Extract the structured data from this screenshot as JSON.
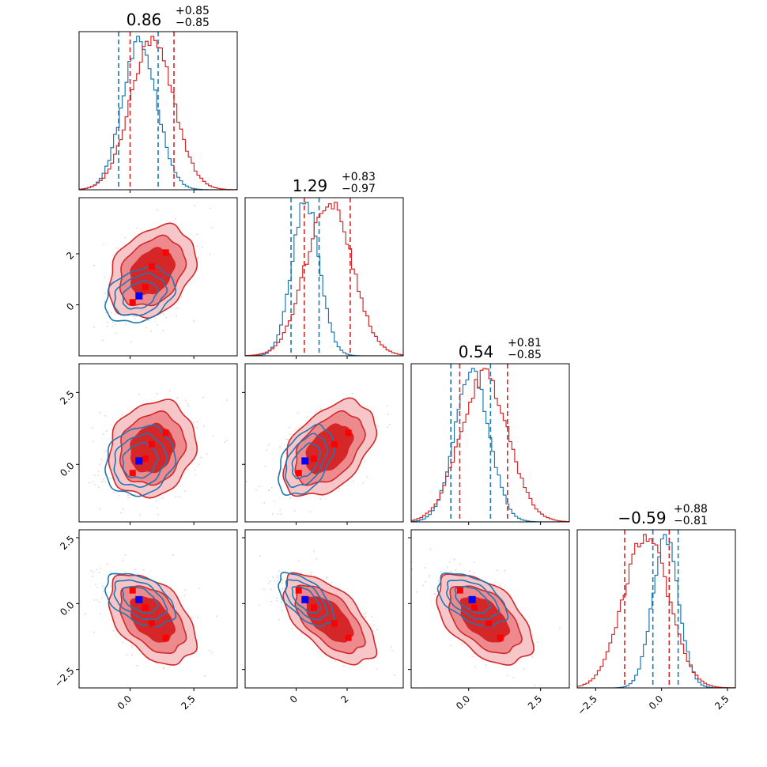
{
  "figure": {
    "background": "#ffffff"
  },
  "chart_data": {
    "type": "corner",
    "parameters": [
      {
        "title": "0.86",
        "upper": "+0.85",
        "lower": "−0.85",
        "range": [
          -2.0,
          4.2
        ]
      },
      {
        "title": "1.29",
        "upper": "+0.83",
        "lower": "−0.97",
        "range": [
          -2.0,
          4.2
        ]
      },
      {
        "title": "0.54",
        "upper": "+0.81",
        "lower": "−0.85",
        "range": [
          -2.0,
          3.5
        ]
      },
      {
        "title": "−0.59",
        "upper": "+0.88",
        "lower": "−0.81",
        "range": [
          -3.2,
          2.8
        ]
      }
    ],
    "series": [
      {
        "color": "#d62728",
        "means": [
          0.86,
          1.29,
          0.54,
          -0.59
        ],
        "sigmas": [
          0.85,
          0.9,
          0.83,
          0.85
        ],
        "quantiles": [
          [
            0.0,
            1.72
          ],
          [
            0.32,
            2.12
          ],
          [
            -0.31,
            1.35
          ],
          [
            -1.4,
            0.29
          ]
        ],
        "markers": [
          [
            0.1,
            0.1,
            -0.3,
            0.5
          ],
          [
            0.6,
            0.7,
            0.2,
            -0.15
          ],
          [
            0.85,
            1.5,
            0.7,
            -0.75
          ],
          [
            1.4,
            2.05,
            1.1,
            -1.3
          ]
        ]
      },
      {
        "color": "#1f77b4",
        "means": [
          0.38,
          0.38,
          0.12,
          0.15
        ],
        "sigmas": [
          0.68,
          0.54,
          0.6,
          0.5
        ],
        "quantiles": [
          [
            -0.45,
            1.1
          ],
          [
            -0.2,
            0.9
          ],
          [
            -0.62,
            0.76
          ],
          [
            -0.33,
            0.63
          ]
        ],
        "markers": []
      }
    ],
    "truth_marker": {
      "color": "#0000ff",
      "values": [
        0.35,
        0.35,
        0.12,
        0.15
      ]
    },
    "correlations": {
      "1-0": 0.3,
      "2-0": 0.15,
      "2-1": 0.45,
      "3-0": -0.45,
      "3-1": -0.6,
      "3-2": -0.5
    },
    "ticks": {
      "diag_x": [
        [
          0.0,
          2.5
        ],
        [
          0,
          2
        ],
        [
          0.0,
          2.5
        ],
        [
          -2.5,
          0.0,
          2.5
        ]
      ],
      "row_y": [
        [],
        [
          0,
          2
        ],
        [
          0.0,
          2.5
        ],
        [
          -2.5,
          0.0,
          2.5
        ]
      ],
      "bottom_x": [
        [
          0.0,
          2.5
        ],
        [
          0,
          2
        ],
        [
          0.0,
          2.5
        ],
        [
          -2.5,
          0.0,
          2.5
        ]
      ]
    },
    "tick_labels": {
      "y1": [
        "0",
        "2"
      ],
      "y2": [
        "0.0",
        "2.5"
      ],
      "y3": [
        "−2.5",
        "0.0",
        "2.5"
      ],
      "x0": [
        "0.0",
        "2.5"
      ],
      "x1": [
        "0",
        "2"
      ],
      "x2": [
        "0.0",
        "2.5"
      ],
      "x3": [
        "−2.5",
        "0.0",
        "2.5"
      ]
    }
  }
}
